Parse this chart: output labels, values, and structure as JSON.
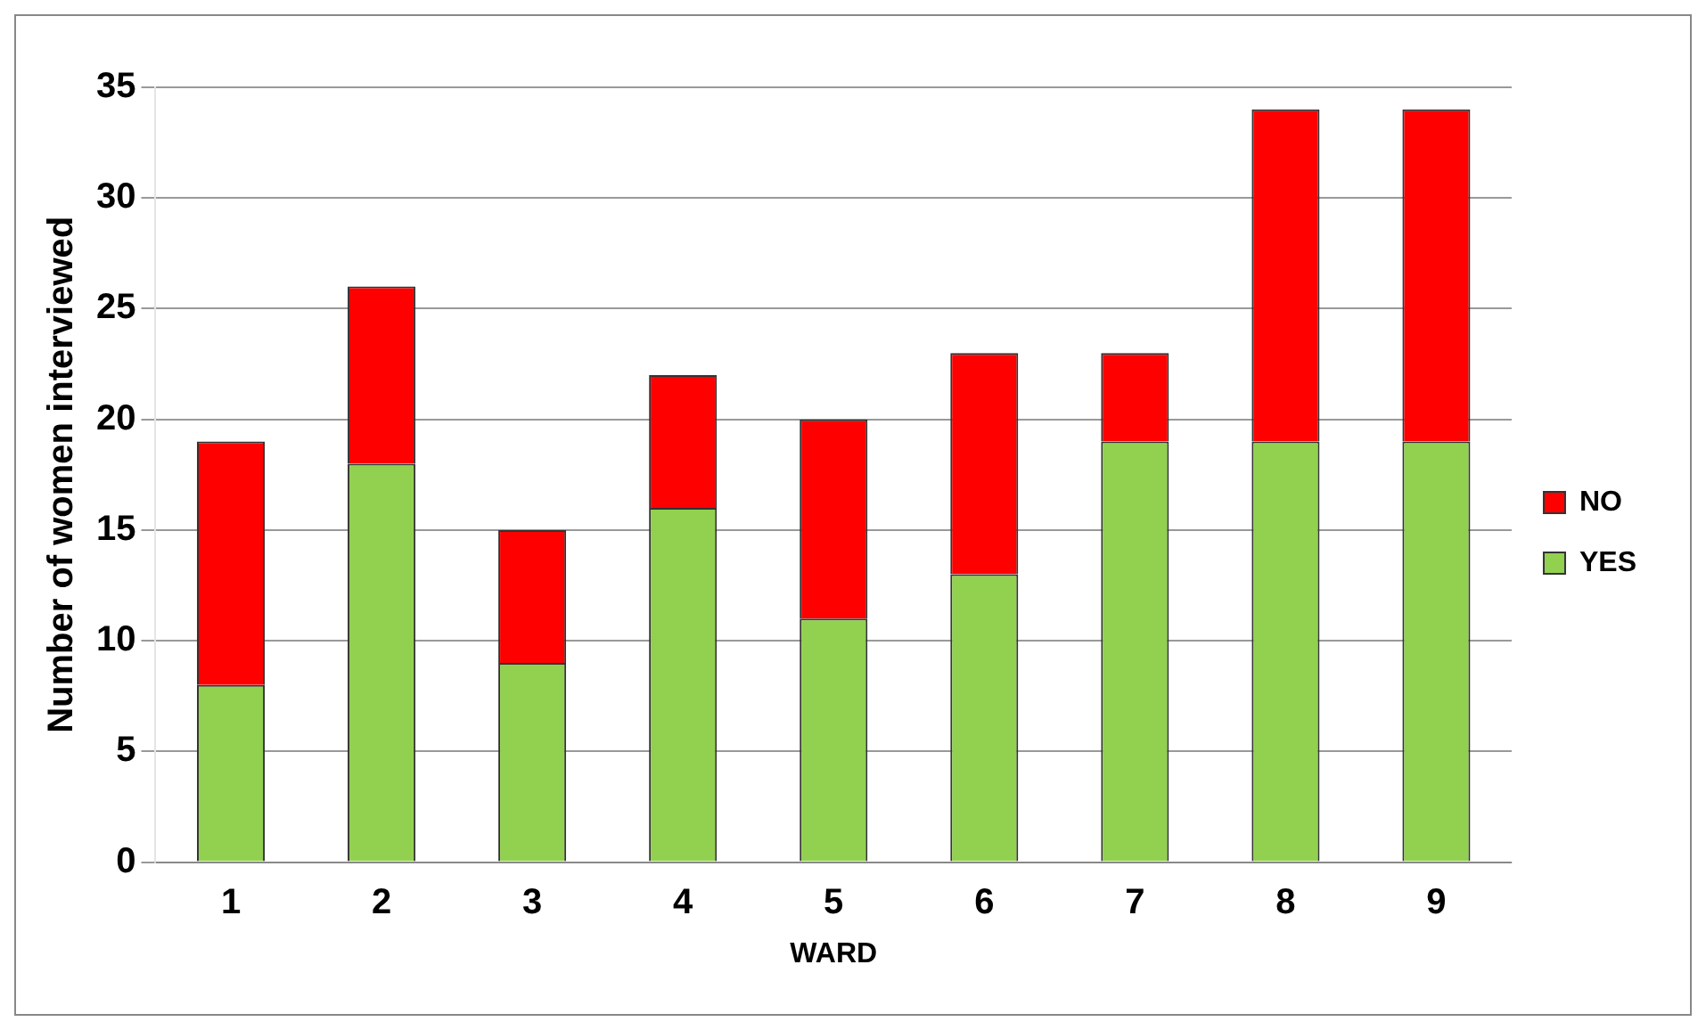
{
  "chart_data": {
    "type": "bar",
    "stacked": true,
    "xlabel": "WARD",
    "ylabel": "Number of women interviewed",
    "categories": [
      "1",
      "2",
      "3",
      "4",
      "5",
      "6",
      "7",
      "8",
      "9"
    ],
    "series": [
      {
        "name": "YES",
        "color": "#92d050",
        "values": [
          8,
          18,
          9,
          16,
          11,
          13,
          19,
          19,
          19
        ]
      },
      {
        "name": "NO",
        "color": "#ff0000",
        "values": [
          11,
          8,
          6,
          6,
          9,
          10,
          4,
          15,
          15
        ]
      }
    ],
    "ylim": [
      0,
      35
    ],
    "yticks": [
      0,
      5,
      10,
      15,
      20,
      25,
      30,
      35
    ],
    "grid": "y",
    "legend": "right"
  }
}
